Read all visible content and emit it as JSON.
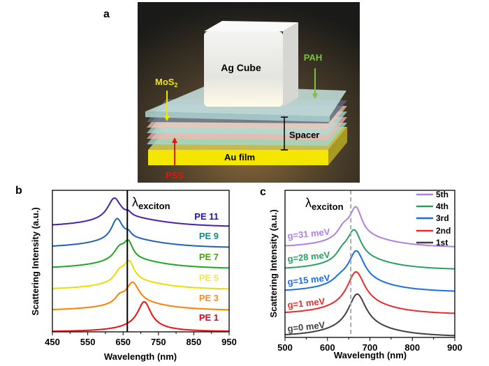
{
  "panel_a": {
    "label": "a",
    "cube_label": "Ag Cube",
    "pah_label": "PAH",
    "mos2_label": "MoS",
    "mos2_sub": "2",
    "spacer_label": "Spacer",
    "au_label": "Au film",
    "pss_label": "PSS",
    "colors": {
      "pah": "#7dc142",
      "mos2": "#f2e600",
      "pss": "#ee1111",
      "au": "#f5e600"
    }
  },
  "chart_data": [
    {
      "panel_label": "b",
      "type": "line",
      "xlabel": "Wavelength (nm)",
      "ylabel": "Scattering Intensity (a.u.)",
      "xlim": [
        450,
        950
      ],
      "ylim": [
        0,
        6.8
      ],
      "xticks": [
        450,
        550,
        650,
        750,
        850,
        950
      ],
      "xtick_labels": [
        "450",
        "550",
        "650",
        "750",
        "850",
        "950"
      ],
      "minor_xticks": [
        500,
        600,
        700,
        800,
        900
      ],
      "grid": false,
      "stacked_offset": true,
      "exciton_line": {
        "x": 662,
        "label": "λ",
        "label_sub": "exciton",
        "style": "solid"
      },
      "series": [
        {
          "name": "PE 1",
          "color": "#ff0a0a",
          "label_color": "#e0001a",
          "offset": 0,
          "peaks": [
            [
              710,
              1.2,
              45
            ],
            [
              700,
              0.25,
              150
            ]
          ]
        },
        {
          "name": "PE 3",
          "color": "#ff8000",
          "label_color": "#ff8c1a",
          "offset": 1,
          "peaks": [
            [
              677,
              1.0,
              45
            ],
            [
              640,
              0.3,
              30
            ],
            [
              690,
              0.35,
              220
            ]
          ]
        },
        {
          "name": "PE 5",
          "color": "#e6e000",
          "label_color": "#efe55a",
          "offset": 2,
          "peaks": [
            [
              667,
              0.9,
              35
            ],
            [
              640,
              0.45,
              35
            ],
            [
              680,
              0.4,
              220
            ]
          ]
        },
        {
          "name": "PE 7",
          "color": "#1fa81f",
          "label_color": "#4a9e1a",
          "offset": 3,
          "peaks": [
            [
              665,
              0.75,
              30
            ],
            [
              640,
              0.55,
              40
            ],
            [
              670,
              0.45,
              230
            ]
          ]
        },
        {
          "name": "PE 9",
          "color": "#1f62b8",
          "label_color": "#178888",
          "offset": 4,
          "peaks": [
            [
              633,
              1.0,
              38
            ],
            [
              665,
              0.2,
              20
            ],
            [
              660,
              0.45,
              240
            ]
          ]
        },
        {
          "name": "PE 11",
          "color": "#4a1fb0",
          "label_color": "#22189a",
          "offset": 5,
          "peaks": [
            [
              625,
              1.0,
              45
            ],
            [
              665,
              0.15,
              20
            ],
            [
              660,
              0.45,
              260
            ]
          ]
        }
      ]
    },
    {
      "panel_label": "c",
      "type": "line",
      "xlabel": "Wavelength (nm)",
      "ylabel": "Scattering Intensity (a.u.)",
      "xlim": [
        500,
        900
      ],
      "ylim": [
        0,
        6.6
      ],
      "xticks": [
        500,
        600,
        700,
        800,
        900
      ],
      "xtick_labels": [
        "500",
        "600",
        "700",
        "800",
        "900"
      ],
      "minor_xticks": [
        550,
        650,
        750,
        850
      ],
      "grid": false,
      "stacked_offset": true,
      "legend_position": "top-right",
      "exciton_line": {
        "x": 655,
        "label": "λ",
        "label_sub": "exciton",
        "style": "dashed"
      },
      "series": [
        {
          "name": "1st",
          "annotation": "g=0 meV",
          "color": "#404040",
          "offset": 0,
          "peaks": [
            [
              670,
              1.5,
              50
            ],
            [
              680,
              0.45,
              180
            ]
          ]
        },
        {
          "name": "2nd",
          "annotation": "g=1 meV",
          "color": "#ec2a2a",
          "offset": 1,
          "peaks": [
            [
              667,
              1.5,
              50
            ],
            [
              680,
              0.45,
              180
            ]
          ]
        },
        {
          "name": "3rd",
          "annotation": "g=15 meV",
          "color": "#1a6ee8",
          "offset": 2,
          "peaks": [
            [
              668,
              1.4,
              45
            ],
            [
              630,
              0.2,
              40
            ],
            [
              680,
              0.45,
              180
            ]
          ]
        },
        {
          "name": "4th",
          "annotation": "g=28 meV",
          "color": "#2aa060",
          "offset": 3,
          "peaks": [
            [
              663,
              1.3,
              40
            ],
            [
              635,
              0.35,
              35
            ],
            [
              680,
              0.45,
              180
            ]
          ]
        },
        {
          "name": "5th",
          "annotation": "g=31 meV",
          "color": "#b07fe0",
          "offset": 4,
          "peaks": [
            [
              667,
              1.3,
              35
            ],
            [
              638,
              0.45,
              35
            ],
            [
              680,
              0.45,
              180
            ]
          ]
        }
      ]
    }
  ]
}
